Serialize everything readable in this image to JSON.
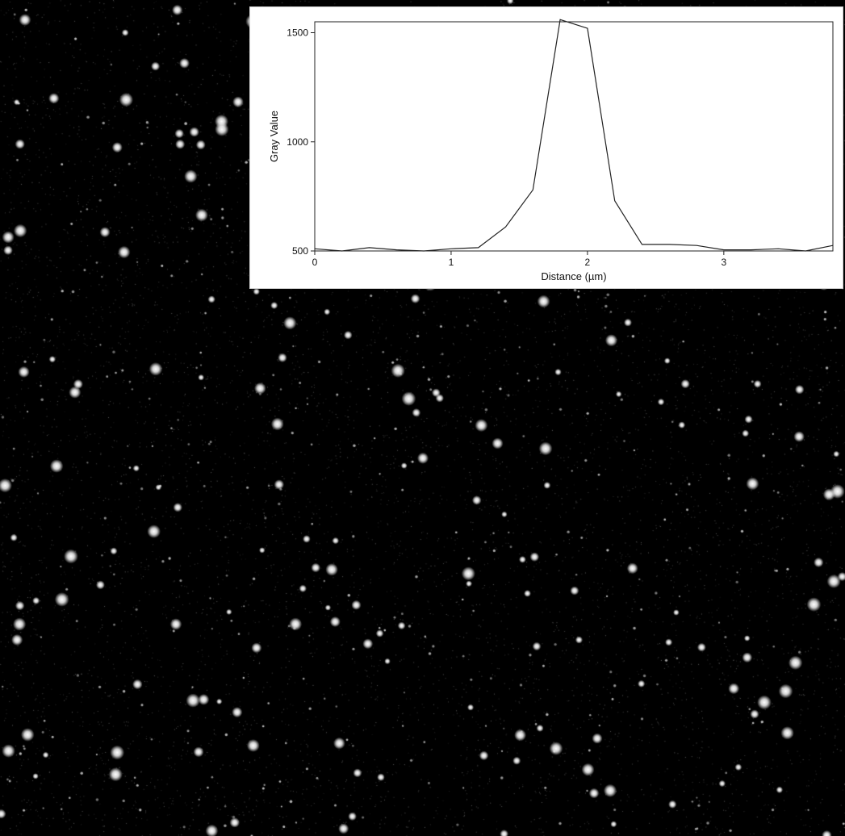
{
  "chart_data": {
    "type": "line",
    "title": "",
    "xlabel": "Distance (µm)",
    "ylabel": "Gray Value",
    "xlim": [
      0,
      3.8
    ],
    "ylim": [
      500,
      1550
    ],
    "x_ticks": [
      0,
      1,
      2,
      3
    ],
    "x_tick_labels": [
      "0",
      "1",
      "2",
      "3"
    ],
    "y_ticks": [
      500,
      1000,
      1500
    ],
    "y_tick_labels": [
      "500",
      "1000",
      "1500"
    ],
    "grid": false,
    "legend": "none",
    "line_color": "#222222",
    "series": [
      {
        "x": [
          0,
          0.2,
          0.4,
          0.6,
          0.8,
          1.0,
          1.2,
          1.4,
          1.6,
          1.8,
          2.0,
          2.2,
          2.4,
          2.6,
          2.8,
          3.0,
          3.2,
          3.4,
          3.6,
          3.8
        ],
        "values": [
          510,
          500,
          515,
          505,
          500,
          510,
          515,
          610,
          780,
          1560,
          1520,
          730,
          530,
          530,
          525,
          505,
          505,
          510,
          500,
          525
        ]
      }
    ]
  },
  "background": {
    "description_color": "#000000",
    "spot_color": "#ffffff"
  }
}
